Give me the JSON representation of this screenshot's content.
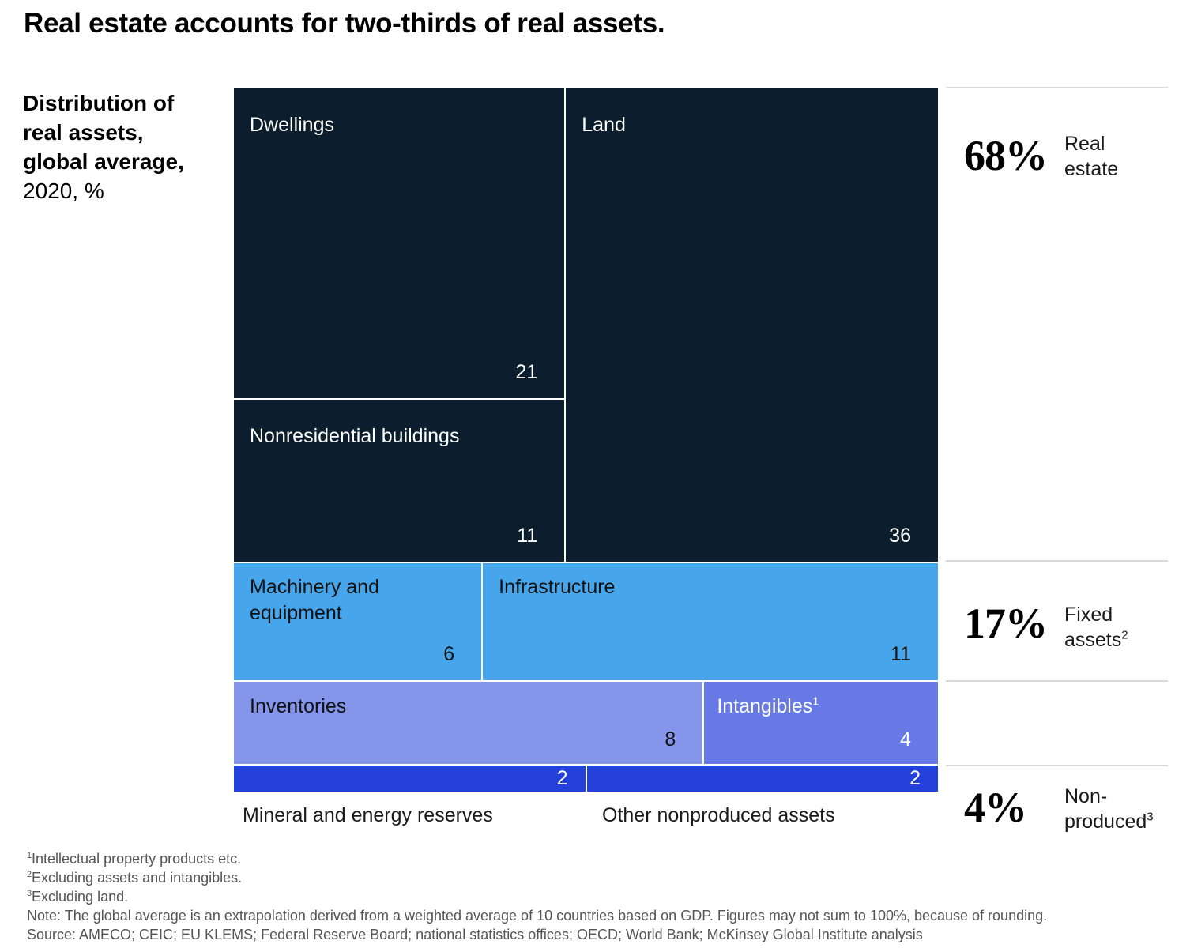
{
  "title": "Real estate accounts for two-thirds of real assets.",
  "subtitle": {
    "bold": [
      "Distribution of",
      "real assets,",
      "global average,"
    ],
    "normal": "2020, %"
  },
  "colors": {
    "real_estate": "#0c1e2d",
    "fixed_assets": "#47a6eb",
    "inventories": "#8596ea",
    "intangibles": "#6679e4",
    "nonproduced": "#2541db",
    "cell_border": "#ffffff",
    "separator": "#d9d9d9"
  },
  "chart_data": {
    "type": "treemap",
    "title": "Real estate accounts for two-thirds of real assets.",
    "subtitle": "Distribution of real assets, global average, 2020, %",
    "unit": "%",
    "groups": [
      {
        "name": "Real estate",
        "total_pct": 68,
        "total_label": "68%",
        "items": [
          {
            "name": "Dwellings",
            "value": 21
          },
          {
            "name": "Nonresidential buildings",
            "value": 11
          },
          {
            "name": "Land",
            "value": 36
          }
        ]
      },
      {
        "name": "Fixed assets",
        "footnote": "2",
        "total_pct": 17,
        "total_label": "17%",
        "items": [
          {
            "name": "Machinery and equipment",
            "value": 6
          },
          {
            "name": "Infrastructure",
            "value": 11
          }
        ]
      },
      {
        "name": "Other",
        "total_label": "",
        "items": [
          {
            "name": "Inventories",
            "value": 8
          },
          {
            "name": "Intangibles",
            "footnote": "1",
            "value": 4
          }
        ]
      },
      {
        "name": "Non-produced",
        "footnote": "3",
        "total_pct": 4,
        "total_label": "4%",
        "items": [
          {
            "name": "Mineral and energy reserves",
            "value": 2
          },
          {
            "name": "Other nonproduced assets",
            "value": 2
          }
        ]
      }
    ]
  },
  "cells": {
    "dwellings": {
      "label": "Dwellings",
      "value": "21"
    },
    "nonresidential": {
      "label": "Nonresidential buildings",
      "value": "11"
    },
    "land": {
      "label": "Land",
      "value": "36"
    },
    "machinery": {
      "label": "Machinery and equipment",
      "value": "6"
    },
    "infrastructure": {
      "label": "Infrastructure",
      "value": "11"
    },
    "inventories": {
      "label": "Inventories",
      "value": "8"
    },
    "intangibles": {
      "label": "Intangibles",
      "sup": "1",
      "value": "4"
    },
    "mineral": {
      "label": "Mineral and energy reserves",
      "value": "2"
    },
    "other_nonproduced": {
      "label": "Other nonproduced assets",
      "value": "2"
    }
  },
  "summary": {
    "real_estate": {
      "pct": "68%",
      "line1": "Real",
      "line2": "estate",
      "sup": ""
    },
    "fixed": {
      "pct": "17%",
      "line1": "Fixed",
      "line2": "assets",
      "sup": "2"
    },
    "nonproduced": {
      "pct": "4%",
      "line1": "Non-",
      "line2": "produced",
      "sup": "3"
    }
  },
  "footnotes": [
    {
      "sup": "1",
      "text": "Intellectual property products etc."
    },
    {
      "sup": "2",
      "text": "Excluding assets and intangibles."
    },
    {
      "sup": "3",
      "text": "Excluding land."
    },
    {
      "sup": "",
      "text": "Note: The global average is an extrapolation derived from a weighted average of 10 countries based on GDP. Figures may not sum to 100%, because of rounding."
    },
    {
      "sup": "",
      "text": "Source: AMECO; CEIC; EU KLEMS; Federal Reserve Board; national statistics offices; OECD; World Bank; McKinsey Global Institute analysis"
    }
  ]
}
